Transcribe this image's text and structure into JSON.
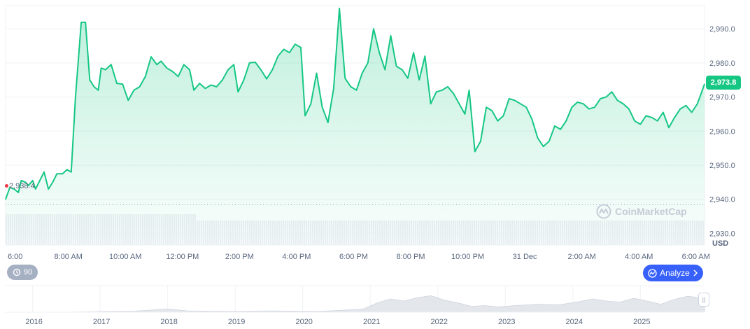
{
  "chart_data": [
    {
      "type": "area",
      "currency_label": "USD",
      "y_ticks": [
        "2,990.0",
        "2,980.0",
        "2,970.0",
        "2,960.0",
        "2,950.0",
        "2,940.0",
        "2,930.0"
      ],
      "y_tick_values": [
        2990,
        2980,
        2970,
        2960,
        2950,
        2940,
        2930
      ],
      "ylim": [
        2926.6,
        2996.8
      ],
      "x_tick_labels": [
        "6:00",
        "8:00 AM",
        "10:00 AM",
        "12:00 PM",
        "2:00 PM",
        "4:00 PM",
        "6:00 PM",
        "8:00 PM",
        "10:00 PM",
        "31 Dec",
        "2:00 AM",
        "4:00 AM",
        "6:00 AM"
      ],
      "x_tick_hours": [
        6,
        8,
        10,
        12,
        14,
        16,
        18,
        20,
        22,
        24,
        26,
        28,
        30
      ],
      "xlim_hours": [
        5.8,
        30.3
      ],
      "open_price": 2938.4,
      "open_price_label": "2,938.4",
      "current_price": 2973.8,
      "current_price_label": "2,973.8",
      "grid": true,
      "line_color": "#16c784",
      "series": [
        {
          "values": [
            [
              5.8,
              2940.0
            ],
            [
              5.95,
              2943.5
            ],
            [
              6.1,
              2943.0
            ],
            [
              6.25,
              2942.0
            ],
            [
              6.35,
              2945.5
            ],
            [
              6.5,
              2945.0
            ],
            [
              6.6,
              2944.0
            ],
            [
              6.75,
              2945.5
            ],
            [
              6.85,
              2943.0
            ],
            [
              7.0,
              2945.5
            ],
            [
              7.15,
              2948.0
            ],
            [
              7.3,
              2943.0
            ],
            [
              7.45,
              2945.0
            ],
            [
              7.6,
              2947.5
            ],
            [
              7.8,
              2947.5
            ],
            [
              7.95,
              2948.7
            ],
            [
              8.1,
              2948.0
            ],
            [
              8.25,
              2970.0
            ],
            [
              8.45,
              2991.9
            ],
            [
              8.6,
              2991.9
            ],
            [
              8.75,
              2975.0
            ],
            [
              8.9,
              2973.0
            ],
            [
              9.05,
              2972.0
            ],
            [
              9.15,
              2978.5
            ],
            [
              9.3,
              2978.0
            ],
            [
              9.5,
              2979.5
            ],
            [
              9.7,
              2974.0
            ],
            [
              9.9,
              2973.8
            ],
            [
              10.1,
              2969.0
            ],
            [
              10.3,
              2972.0
            ],
            [
              10.5,
              2973.0
            ],
            [
              10.7,
              2976.0
            ],
            [
              10.9,
              2981.8
            ],
            [
              11.1,
              2979.5
            ],
            [
              11.25,
              2980.5
            ],
            [
              11.45,
              2978.5
            ],
            [
              11.65,
              2977.5
            ],
            [
              11.85,
              2976.0
            ],
            [
              12.05,
              2979.5
            ],
            [
              12.25,
              2978.0
            ],
            [
              12.4,
              2972.0
            ],
            [
              12.6,
              2974.0
            ],
            [
              12.8,
              2972.5
            ],
            [
              13.0,
              2973.5
            ],
            [
              13.2,
              2973.0
            ],
            [
              13.4,
              2975.0
            ],
            [
              13.6,
              2978.0
            ],
            [
              13.8,
              2979.5
            ],
            [
              13.95,
              2971.5
            ],
            [
              14.15,
              2975.0
            ],
            [
              14.35,
              2980.0
            ],
            [
              14.55,
              2980.2
            ],
            [
              14.75,
              2978.0
            ],
            [
              14.95,
              2975.3
            ],
            [
              15.15,
              2978.0
            ],
            [
              15.35,
              2982.0
            ],
            [
              15.55,
              2984.0
            ],
            [
              15.75,
              2983.0
            ],
            [
              15.95,
              2985.5
            ],
            [
              16.15,
              2984.5
            ],
            [
              16.3,
              2964.5
            ],
            [
              16.5,
              2968.0
            ],
            [
              16.7,
              2977.0
            ],
            [
              16.9,
              2967.0
            ],
            [
              17.1,
              2962.5
            ],
            [
              17.3,
              2972.5
            ],
            [
              17.5,
              2996.0
            ],
            [
              17.7,
              2975.5
            ],
            [
              17.9,
              2973.0
            ],
            [
              18.1,
              2972.0
            ],
            [
              18.3,
              2977.0
            ],
            [
              18.5,
              2980.0
            ],
            [
              18.7,
              2990.0
            ],
            [
              18.9,
              2983.0
            ],
            [
              19.1,
              2978.0
            ],
            [
              19.3,
              2988.0
            ],
            [
              19.5,
              2979.0
            ],
            [
              19.7,
              2978.0
            ],
            [
              19.9,
              2975.5
            ],
            [
              20.1,
              2983.0
            ],
            [
              20.3,
              2975.0
            ],
            [
              20.5,
              2982.0
            ],
            [
              20.7,
              2968.0
            ],
            [
              20.9,
              2971.5
            ],
            [
              21.1,
              2972.0
            ],
            [
              21.3,
              2973.0
            ],
            [
              21.5,
              2971.0
            ],
            [
              21.7,
              2968.0
            ],
            [
              21.9,
              2965.0
            ],
            [
              22.05,
              2972.0
            ],
            [
              22.25,
              2954.0
            ],
            [
              22.45,
              2957.0
            ],
            [
              22.65,
              2967.0
            ],
            [
              22.85,
              2966.0
            ],
            [
              23.05,
              2963.0
            ],
            [
              23.25,
              2964.5
            ],
            [
              23.45,
              2969.5
            ],
            [
              23.65,
              2969.0
            ],
            [
              23.85,
              2968.0
            ],
            [
              24.05,
              2967.0
            ],
            [
              24.25,
              2963.5
            ],
            [
              24.45,
              2958.0
            ],
            [
              24.65,
              2955.5
            ],
            [
              24.85,
              2957.0
            ],
            [
              25.05,
              2961.5
            ],
            [
              25.25,
              2960.5
            ],
            [
              25.45,
              2963.0
            ],
            [
              25.65,
              2967.0
            ],
            [
              25.85,
              2968.5
            ],
            [
              26.05,
              2968.0
            ],
            [
              26.25,
              2966.5
            ],
            [
              26.45,
              2967.0
            ],
            [
              26.65,
              2969.5
            ],
            [
              26.85,
              2970.0
            ],
            [
              27.05,
              2971.5
            ],
            [
              27.25,
              2969.0
            ],
            [
              27.45,
              2968.0
            ],
            [
              27.65,
              2966.5
            ],
            [
              27.85,
              2963.0
            ],
            [
              28.05,
              2962.0
            ],
            [
              28.25,
              2964.5
            ],
            [
              28.45,
              2964.0
            ],
            [
              28.65,
              2963.0
            ],
            [
              28.85,
              2965.5
            ],
            [
              29.05,
              2961.0
            ],
            [
              29.25,
              2964.0
            ],
            [
              29.45,
              2966.5
            ],
            [
              29.65,
              2967.5
            ],
            [
              29.85,
              2965.5
            ],
            [
              30.05,
              2968.0
            ],
            [
              30.3,
              2973.8
            ]
          ]
        }
      ]
    },
    {
      "type": "area",
      "x_tick_labels": [
        "2016",
        "2017",
        "2018",
        "2019",
        "2020",
        "2021",
        "2022",
        "2023",
        "2024",
        "2025"
      ],
      "x_tick_years": [
        2016,
        2017,
        2018,
        2019,
        2020,
        2021,
        2022,
        2023,
        2024,
        2025
      ],
      "xlim_years": [
        2015.6,
        2025.95
      ],
      "series": [
        {
          "values": [
            [
              2015.6,
              0.0
            ],
            [
              2016.5,
              0.0
            ],
            [
              2017.0,
              0.02
            ],
            [
              2017.5,
              0.04
            ],
            [
              2018.0,
              0.12
            ],
            [
              2018.3,
              0.05
            ],
            [
              2018.6,
              0.04
            ],
            [
              2019.0,
              0.03
            ],
            [
              2019.5,
              0.05
            ],
            [
              2019.9,
              0.04
            ],
            [
              2020.2,
              0.03
            ],
            [
              2020.5,
              0.06
            ],
            [
              2020.9,
              0.12
            ],
            [
              2021.1,
              0.35
            ],
            [
              2021.3,
              0.5
            ],
            [
              2021.5,
              0.42
            ],
            [
              2021.7,
              0.55
            ],
            [
              2021.9,
              0.62
            ],
            [
              2022.1,
              0.45
            ],
            [
              2022.3,
              0.35
            ],
            [
              2022.5,
              0.22
            ],
            [
              2022.7,
              0.25
            ],
            [
              2022.9,
              0.2
            ],
            [
              2023.2,
              0.26
            ],
            [
              2023.5,
              0.3
            ],
            [
              2023.8,
              0.28
            ],
            [
              2024.1,
              0.4
            ],
            [
              2024.3,
              0.5
            ],
            [
              2024.5,
              0.42
            ],
            [
              2024.7,
              0.38
            ],
            [
              2024.9,
              0.52
            ],
            [
              2025.1,
              0.42
            ],
            [
              2025.3,
              0.3
            ],
            [
              2025.5,
              0.48
            ],
            [
              2025.7,
              0.6
            ],
            [
              2025.95,
              0.52
            ]
          ]
        }
      ]
    }
  ],
  "watermark_text": "CoinMarketCap",
  "zoom_badge_label": "90",
  "analyze_button_label": "Analyze",
  "icons": [
    "history-icon",
    "analyze-icon",
    "chevron-right-icon",
    "coinmarketcap-logo-icon",
    "drag-handle-icon"
  ]
}
